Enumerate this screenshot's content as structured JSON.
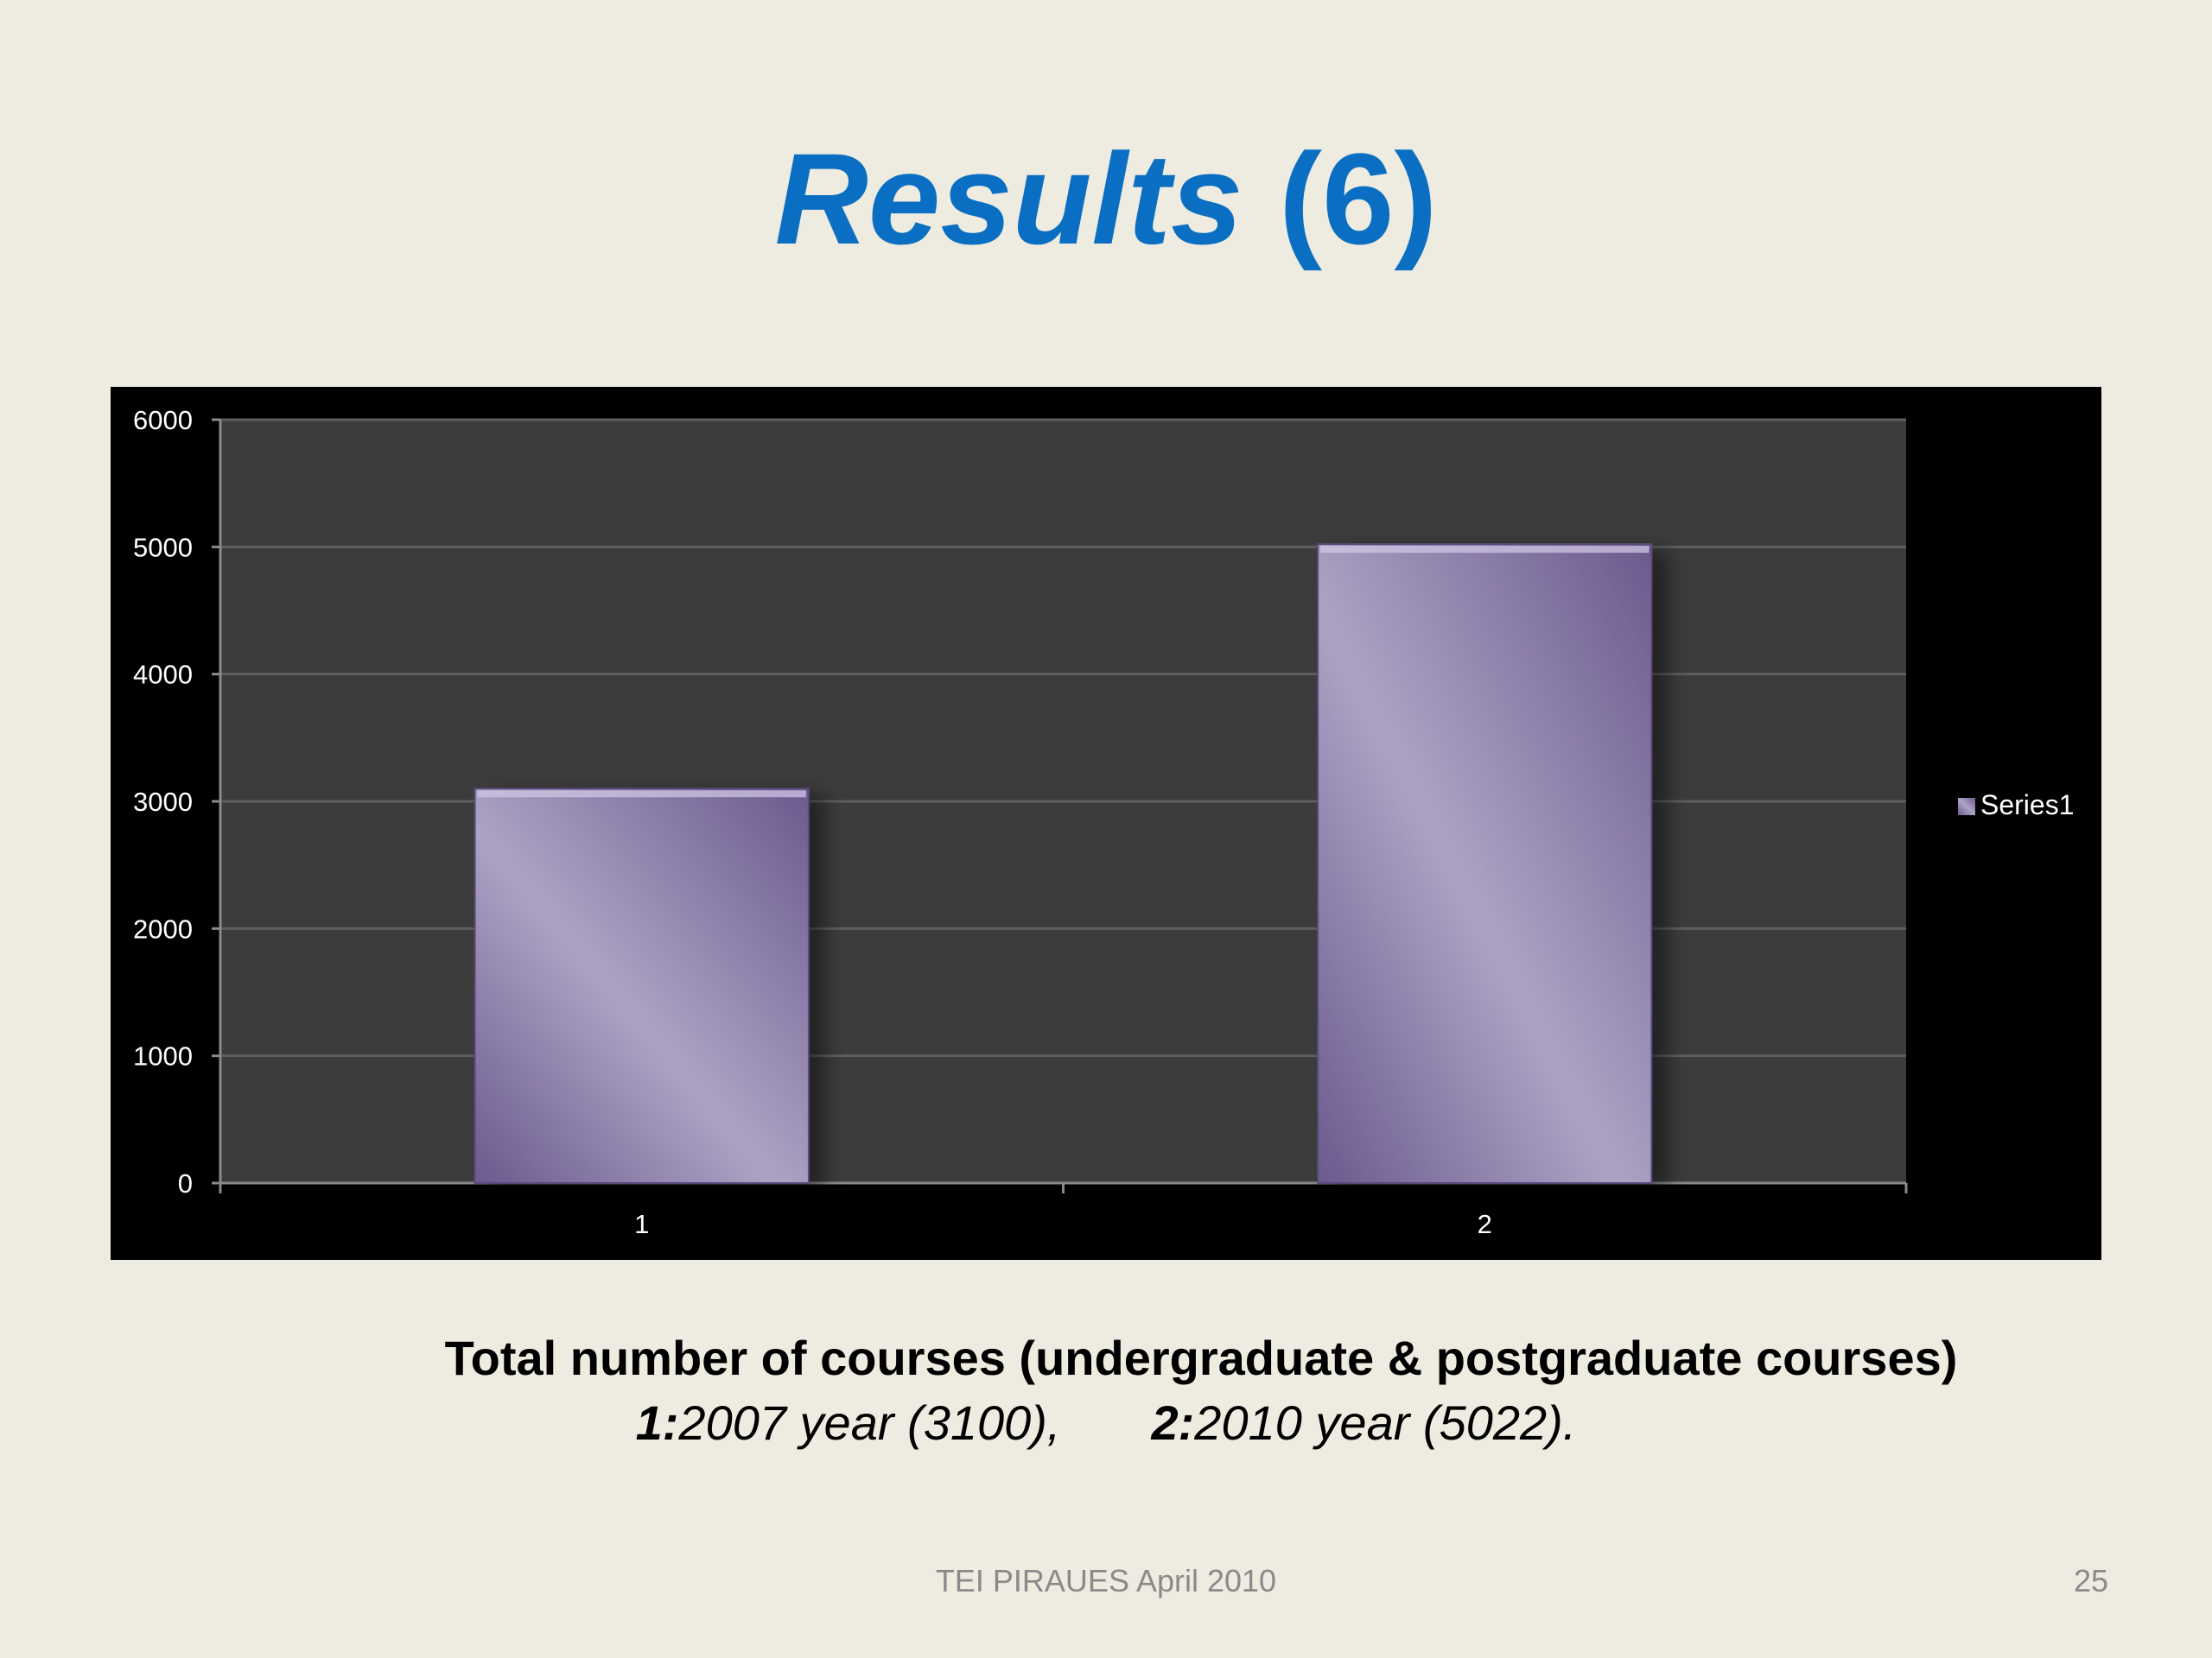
{
  "slide": {
    "title_main": "Results",
    "title_suffix": "(6)",
    "caption_title": "Total number of courses (undergraduate & postgraduate courses)",
    "caption_item1_key": "1:",
    "caption_item1_text": "2007 year (3100),",
    "caption_item2_key": "2:",
    "caption_item2_text": "2010 year (5022).",
    "footer": "TEI PIRAUES  April 2010",
    "page_number": "25"
  },
  "chart_data": {
    "type": "bar",
    "title": "",
    "xlabel": "",
    "ylabel": "",
    "categories": [
      "1",
      "2"
    ],
    "series": [
      {
        "name": "Series1",
        "values": [
          3100,
          5022
        ]
      }
    ],
    "ylim": [
      0,
      6000
    ],
    "yticks": [
      0,
      1000,
      2000,
      3000,
      4000,
      5000,
      6000
    ],
    "grid": true,
    "legend": "right",
    "colors": {
      "frame_background": "#000000",
      "plot_background": "#3C3C3C",
      "gridline": "#5E5E5E",
      "bar_light": "#ACA3C4",
      "bar_dark": "#6B5A8E",
      "axis_text": "#FFFFFF"
    }
  }
}
